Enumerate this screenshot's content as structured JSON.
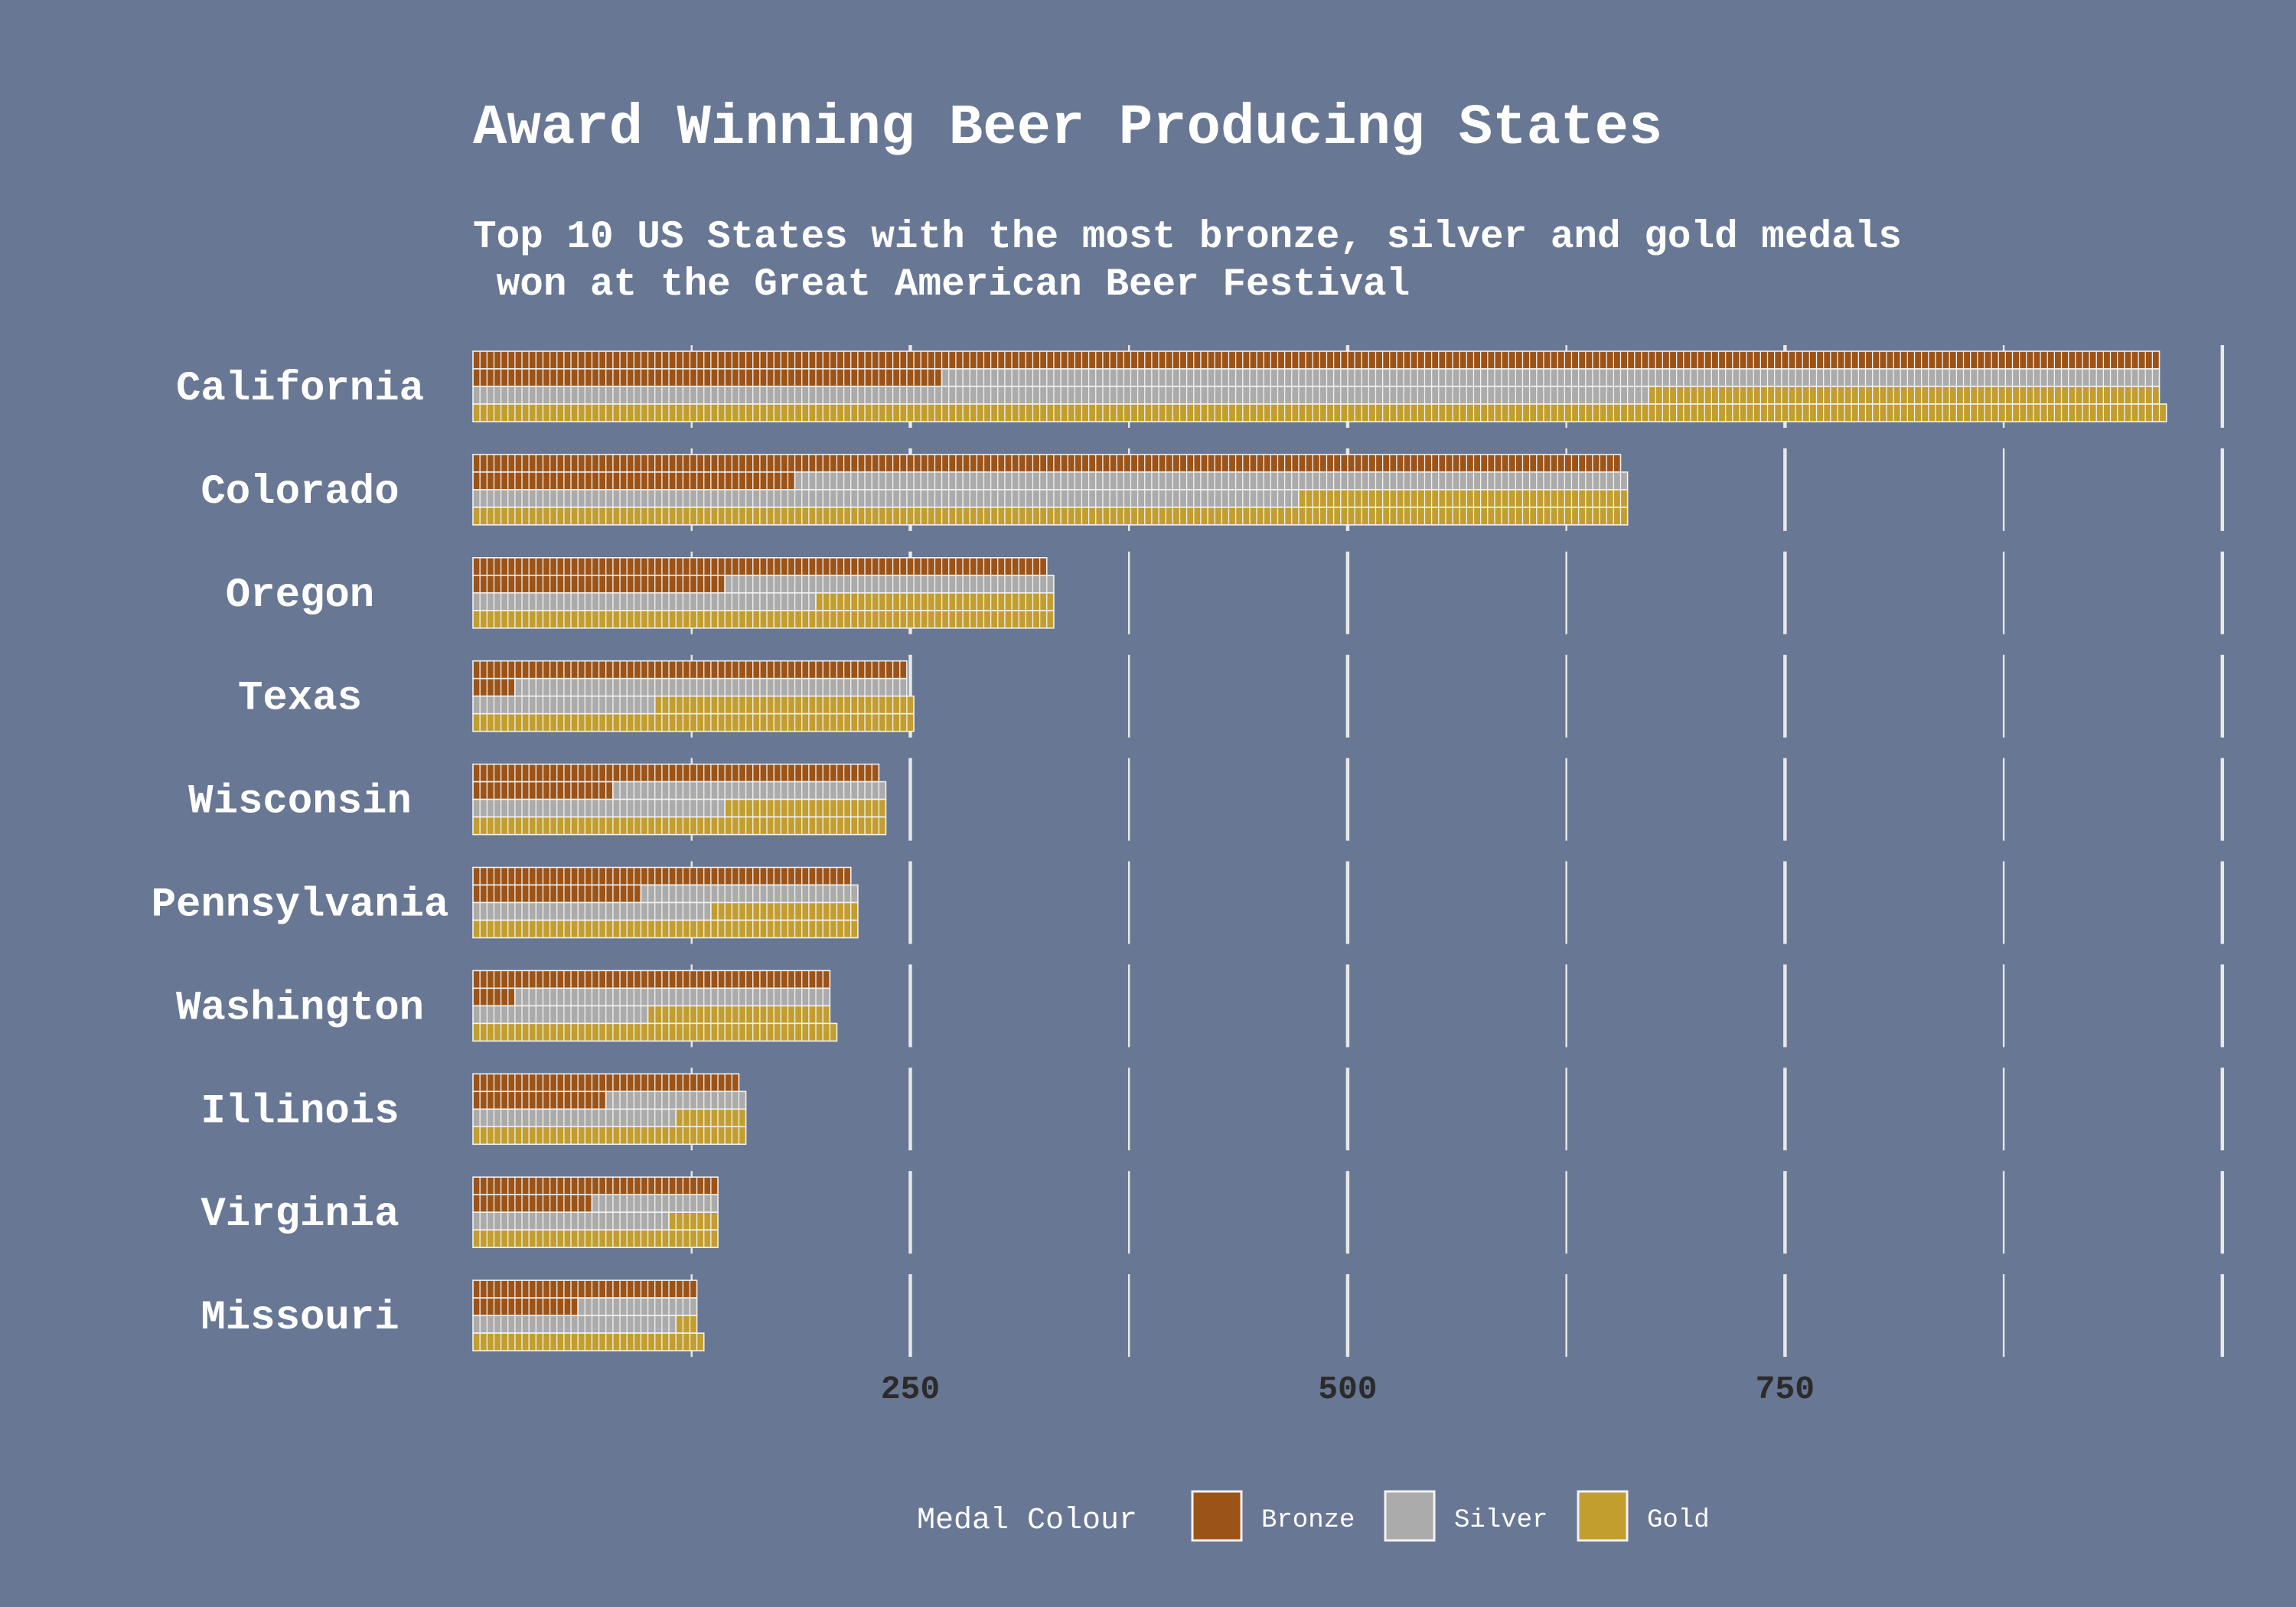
{
  "chart_data": {
    "type": "bar",
    "orientation": "horizontal",
    "stacked": true,
    "style": "waffle",
    "title": "Award Winning Beer Producing States",
    "subtitle_lines": [
      "Top 10 US States with the most bronze, silver and gold medals",
      " won at the Great American Beer Festival"
    ],
    "categories": [
      "California",
      "Colorado",
      "Oregon",
      "Texas",
      "Wisconsin",
      "Pennsylvania",
      "Washington",
      "Illinois",
      "Virginia",
      "Missouri"
    ],
    "series": [
      {
        "name": "Bronze",
        "values": [
          308,
          210,
          118,
          68,
          78,
          78,
          57,
          57,
          52,
          47
        ]
      },
      {
        "name": "Silver",
        "values": [
          342,
          237,
          96,
          82,
          75,
          65,
          70,
          49,
          46,
          46
        ]
      },
      {
        "name": "Gold",
        "values": [
          315,
          212,
          117,
          100,
          82,
          76,
          78,
          49,
          42,
          36
        ]
      }
    ],
    "totals": [
      965,
      659,
      331,
      250,
      235,
      219,
      205,
      155,
      140,
      129
    ],
    "xticks": [
      250,
      500,
      750
    ],
    "xlim": [
      0,
      1030
    ],
    "grid": true,
    "legend": {
      "title": "Medal Colour",
      "position": "bottom"
    },
    "colors": {
      "Bronze": "#9c5317",
      "Silver": "#ababab",
      "Gold": "#c29e2f"
    }
  },
  "theme": {
    "background": "#687793",
    "grid": "#e8e8e8",
    "cell_border": "#f2f2f2",
    "title_color": "#ffffff",
    "tick_color": "#2b2b2b"
  }
}
